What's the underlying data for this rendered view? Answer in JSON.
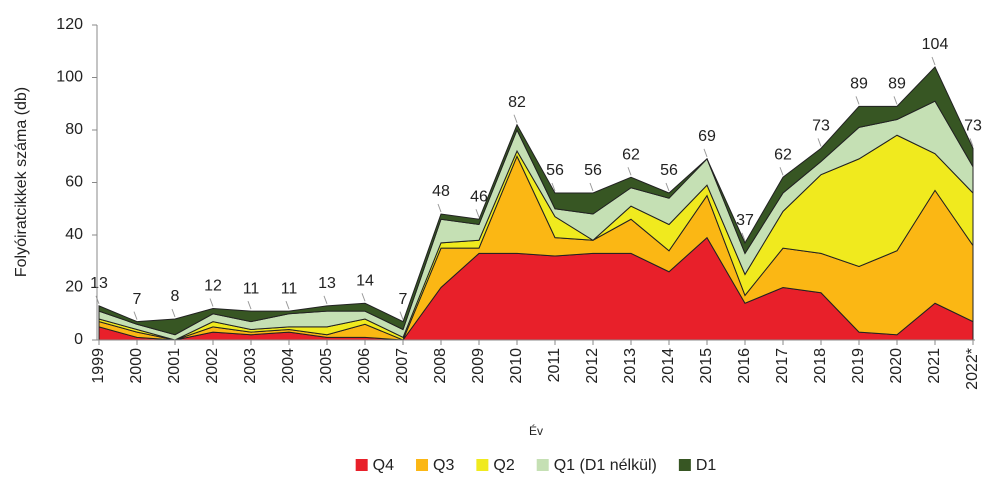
{
  "chart_data": {
    "type": "stacked_area",
    "y_label": "Folyóiratcikkek száma (db)",
    "x_label": "Év",
    "categories": [
      "1999",
      "2000",
      "2001",
      "2002",
      "2003",
      "2004",
      "2005",
      "2006",
      "2007",
      "2008",
      "2009",
      "2010",
      "2011",
      "2012",
      "2013",
      "2014",
      "2015",
      "2016",
      "2017",
      "2018",
      "2019",
      "2020",
      "2021",
      "2022*"
    ],
    "series": [
      {
        "name": "Q4",
        "color": "#e8202a",
        "values": [
          5,
          1,
          0,
          3,
          2,
          3,
          1,
          1,
          0,
          20,
          33,
          33,
          32,
          33,
          33,
          26,
          39,
          14,
          20,
          18,
          3,
          2,
          14,
          7
        ]
      },
      {
        "name": "Q3",
        "color": "#fbb714",
        "values": [
          2,
          2,
          0,
          2,
          1,
          1,
          1,
          5,
          0,
          15,
          2,
          37,
          7,
          5,
          13,
          8,
          16,
          3,
          15,
          15,
          25,
          32,
          43,
          29
        ]
      },
      {
        "name": "Q2",
        "color": "#f0ea1e",
        "values": [
          1,
          1,
          0,
          2,
          1,
          1,
          3,
          2,
          1,
          2,
          3,
          2,
          8,
          0,
          5,
          10,
          4,
          8,
          14,
          30,
          41,
          44,
          14,
          20
        ]
      },
      {
        "name": "Q1 (D1 nélkül)",
        "color": "#c5e0b4",
        "values": [
          3,
          2,
          2,
          3,
          3,
          5,
          6,
          3,
          3,
          9,
          6,
          8,
          3,
          10,
          7,
          10,
          10,
          8,
          7,
          5,
          12,
          6,
          20,
          10
        ]
      },
      {
        "name": "D1",
        "color": "#375623",
        "values": [
          2,
          1,
          6,
          2,
          4,
          1,
          2,
          3,
          3,
          2,
          2,
          2,
          6,
          8,
          4,
          2,
          0,
          4,
          6,
          5,
          8,
          5,
          13,
          7
        ]
      }
    ],
    "totals": [
      13,
      7,
      8,
      12,
      11,
      11,
      13,
      14,
      7,
      48,
      46,
      82,
      56,
      56,
      62,
      56,
      69,
      37,
      62,
      73,
      89,
      89,
      104,
      73
    ],
    "ylim": [
      0,
      120
    ],
    "yticks": [
      0,
      20,
      40,
      60,
      80,
      100,
      120
    ],
    "grid": false,
    "legend": "bottom"
  }
}
